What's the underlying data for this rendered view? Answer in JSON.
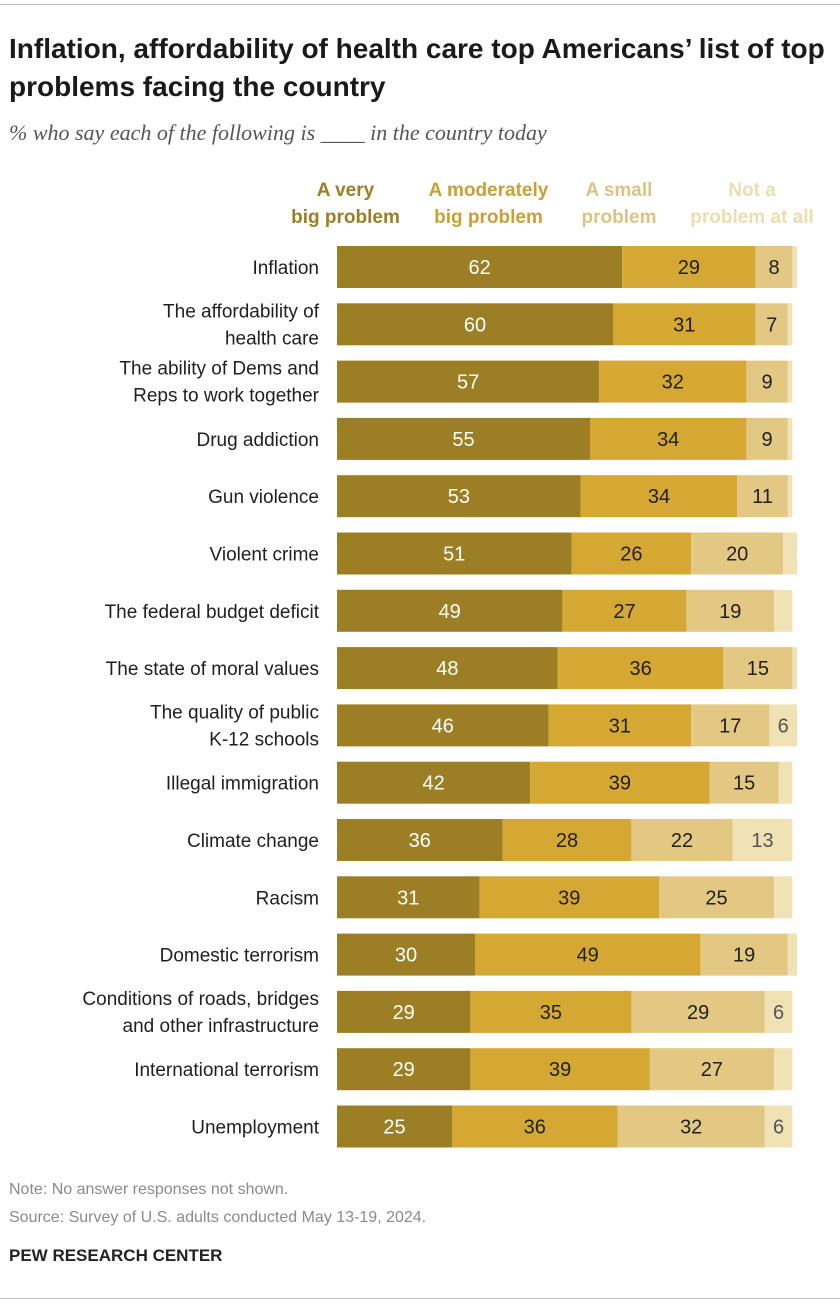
{
  "title": "Inflation, affordability of health care top Americans’ list of top problems facing the country",
  "subtitle": "% who say each of the following is ____ in the country today",
  "chart_data": {
    "type": "bar",
    "orientation": "horizontal",
    "stacked": true,
    "xlim": [
      0,
      100
    ],
    "grid": false,
    "legend_position": "top",
    "categories": [
      "Inflation",
      "The affordability of health care",
      "The ability of Dems and Reps to work together",
      "Drug addiction",
      "Gun violence",
      "Violent crime",
      "The federal budget deficit",
      "The state of moral values",
      "The quality of public K-12 schools",
      "Illegal immigration",
      "Climate change",
      "Racism",
      "Domestic terrorism",
      "Conditions of roads, bridges and other infrastructure",
      "International terrorism",
      "Unemployment"
    ],
    "category_lines": [
      [
        "Inflation"
      ],
      [
        "The affordability of",
        "health care"
      ],
      [
        "The ability of Dems and",
        "Reps to work together"
      ],
      [
        "Drug addiction"
      ],
      [
        "Gun violence"
      ],
      [
        "Violent crime"
      ],
      [
        "The federal budget deficit"
      ],
      [
        "The state of moral values"
      ],
      [
        "The quality of public",
        "K-12 schools"
      ],
      [
        "Illegal immigration"
      ],
      [
        "Climate change"
      ],
      [
        "Racism"
      ],
      [
        "Domestic terrorism"
      ],
      [
        "Conditions of roads, bridges",
        "and other infrastructure"
      ],
      [
        "International terrorism"
      ],
      [
        "Unemployment"
      ]
    ],
    "series": [
      {
        "name": "A very big problem",
        "legend_lines": [
          "A very",
          "big problem"
        ],
        "color": "#9c7f24",
        "label_color": "#ffffff",
        "values": [
          62,
          60,
          57,
          55,
          53,
          51,
          49,
          48,
          46,
          42,
          36,
          31,
          30,
          29,
          29,
          25
        ]
      },
      {
        "name": "A moderately big problem",
        "legend_lines": [
          "A moderately",
          "big problem"
        ],
        "color": "#d4a833",
        "label_color": "#1f1f1f",
        "values": [
          29,
          31,
          32,
          34,
          34,
          26,
          27,
          36,
          31,
          39,
          28,
          39,
          49,
          35,
          39,
          36
        ]
      },
      {
        "name": "A small problem",
        "legend_lines": [
          "A small",
          "problem"
        ],
        "color": "#e3c883",
        "label_color": "#1f1f1f",
        "values": [
          8,
          7,
          9,
          9,
          11,
          20,
          19,
          15,
          17,
          15,
          22,
          25,
          19,
          29,
          27,
          32
        ]
      },
      {
        "name": "Not a problem at all",
        "legend_lines": [
          "Not a",
          "problem at all"
        ],
        "color": "#f1e2b6",
        "label_color": "#555555",
        "values": [
          1,
          1,
          1,
          1,
          1,
          3,
          4,
          1,
          6,
          3,
          13,
          4,
          2,
          6,
          4,
          6
        ],
        "labels_shown": [
          null,
          null,
          null,
          null,
          null,
          null,
          null,
          null,
          6,
          null,
          13,
          null,
          null,
          6,
          null,
          6
        ]
      }
    ]
  },
  "legend_label_colors": [
    "#9c7f24",
    "#c9a036",
    "#dcc385",
    "#ecdcae"
  ],
  "note": "Note: No answer responses not shown.",
  "source": "Source: Survey of U.S. adults conducted May 13-19, 2024.",
  "credit": "PEW RESEARCH CENTER"
}
